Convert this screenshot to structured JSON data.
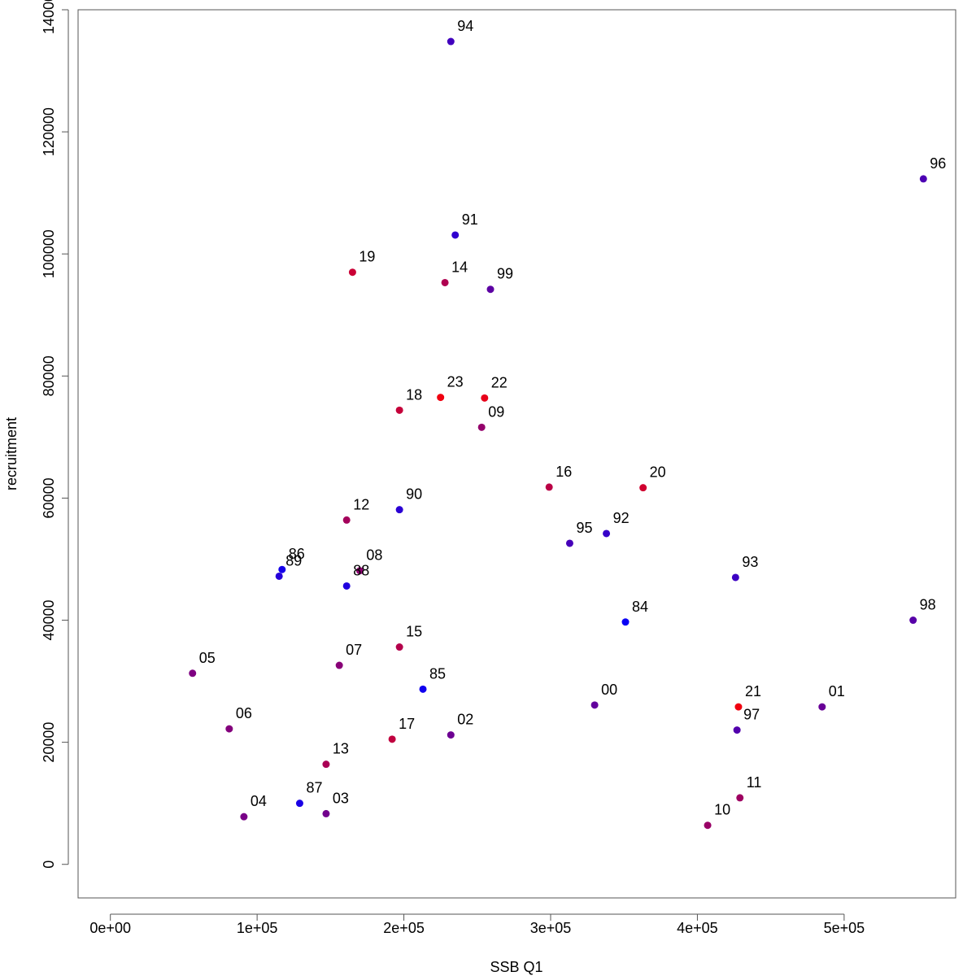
{
  "chart_data": {
    "type": "scatter",
    "title": "",
    "xlabel": "SSB Q1",
    "ylabel": "recruitment",
    "xlim": [
      -22000,
      576000
    ],
    "ylim": [
      -5500,
      140000
    ],
    "x_ticks": [
      {
        "value": 0,
        "label": "0e+00"
      },
      {
        "value": 100000,
        "label": "1e+05"
      },
      {
        "value": 200000,
        "label": "2e+05"
      },
      {
        "value": 300000,
        "label": "3e+05"
      },
      {
        "value": 400000,
        "label": "4e+05"
      },
      {
        "value": 500000,
        "label": "5e+05"
      }
    ],
    "y_ticks": [
      {
        "value": 0,
        "label": "0"
      },
      {
        "value": 20000,
        "label": "20000"
      },
      {
        "value": 40000,
        "label": "40000"
      },
      {
        "value": 60000,
        "label": "60000"
      },
      {
        "value": 80000,
        "label": "80000"
      },
      {
        "value": 100000,
        "label": "100000"
      },
      {
        "value": 120000,
        "label": "120000"
      },
      {
        "value": 140000,
        "label": "140000"
      }
    ],
    "grid": false,
    "legend": "none",
    "color_scale": "blue (1984) to red (2023) by year",
    "points": [
      {
        "label": "84",
        "x": 351000,
        "y": 39700,
        "color": "#0a00f5"
      },
      {
        "label": "85",
        "x": 213000,
        "y": 28700,
        "color": "#1000ef"
      },
      {
        "label": "86",
        "x": 117000,
        "y": 48300,
        "color": "#1500ea"
      },
      {
        "label": "87",
        "x": 129000,
        "y": 10000,
        "color": "#1a00e5"
      },
      {
        "label": "88",
        "x": 161000,
        "y": 45600,
        "color": "#2000df"
      },
      {
        "label": "89",
        "x": 115000,
        "y": 47200,
        "color": "#2600d9"
      },
      {
        "label": "90",
        "x": 197000,
        "y": 58100,
        "color": "#2b00d4"
      },
      {
        "label": "91",
        "x": 235000,
        "y": 103100,
        "color": "#3000cf"
      },
      {
        "label": "92",
        "x": 338000,
        "y": 54200,
        "color": "#3600c9"
      },
      {
        "label": "93",
        "x": 426000,
        "y": 47000,
        "color": "#3c00c3"
      },
      {
        "label": "94",
        "x": 232000,
        "y": 134800,
        "color": "#4100be"
      },
      {
        "label": "95",
        "x": 313000,
        "y": 52600,
        "color": "#4600b9"
      },
      {
        "label": "96",
        "x": 554000,
        "y": 112300,
        "color": "#4c00b3"
      },
      {
        "label": "97",
        "x": 427000,
        "y": 22000,
        "color": "#5200ad"
      },
      {
        "label": "98",
        "x": 547000,
        "y": 40000,
        "color": "#5700a8"
      },
      {
        "label": "99",
        "x": 259000,
        "y": 94200,
        "color": "#5c00a3"
      },
      {
        "label": "00",
        "x": 330000,
        "y": 26100,
        "color": "#62009d"
      },
      {
        "label": "01",
        "x": 485000,
        "y": 25800,
        "color": "#680097"
      },
      {
        "label": "02",
        "x": 232000,
        "y": 21200,
        "color": "#6d0092"
      },
      {
        "label": "03",
        "x": 147000,
        "y": 8300,
        "color": "#72008d"
      },
      {
        "label": "04",
        "x": 91000,
        "y": 7800,
        "color": "#780087"
      },
      {
        "label": "05",
        "x": 56000,
        "y": 31300,
        "color": "#7e0081"
      },
      {
        "label": "06",
        "x": 81000,
        "y": 22200,
        "color": "#83007c"
      },
      {
        "label": "07",
        "x": 156000,
        "y": 32600,
        "color": "#880077"
      },
      {
        "label": "08",
        "x": 170000,
        "y": 48100,
        "color": "#8e0071"
      },
      {
        "label": "09",
        "x": 253000,
        "y": 71600,
        "color": "#94006b"
      },
      {
        "label": "10",
        "x": 407000,
        "y": 6400,
        "color": "#990066"
      },
      {
        "label": "11",
        "x": 429000,
        "y": 10900,
        "color": "#9e0061"
      },
      {
        "label": "12",
        "x": 161000,
        "y": 56400,
        "color": "#a4005b"
      },
      {
        "label": "13",
        "x": 147000,
        "y": 16400,
        "color": "#aa0055"
      },
      {
        "label": "14",
        "x": 228000,
        "y": 95300,
        "color": "#af0050"
      },
      {
        "label": "15",
        "x": 197000,
        "y": 35600,
        "color": "#b4004b"
      },
      {
        "label": "16",
        "x": 299000,
        "y": 61800,
        "color": "#ba0045"
      },
      {
        "label": "17",
        "x": 192000,
        "y": 20500,
        "color": "#c0003f"
      },
      {
        "label": "18",
        "x": 197000,
        "y": 74400,
        "color": "#c5003a"
      },
      {
        "label": "19",
        "x": 165000,
        "y": 97000,
        "color": "#ca0035"
      },
      {
        "label": "20",
        "x": 363000,
        "y": 61700,
        "color": "#d0002f"
      },
      {
        "label": "21",
        "x": 428000,
        "y": 25800,
        "color": "#f0000f"
      },
      {
        "label": "22",
        "x": 255000,
        "y": 76400,
        "color": "#e8001a"
      },
      {
        "label": "23",
        "x": 225000,
        "y": 76500,
        "color": "#f00010"
      }
    ]
  }
}
